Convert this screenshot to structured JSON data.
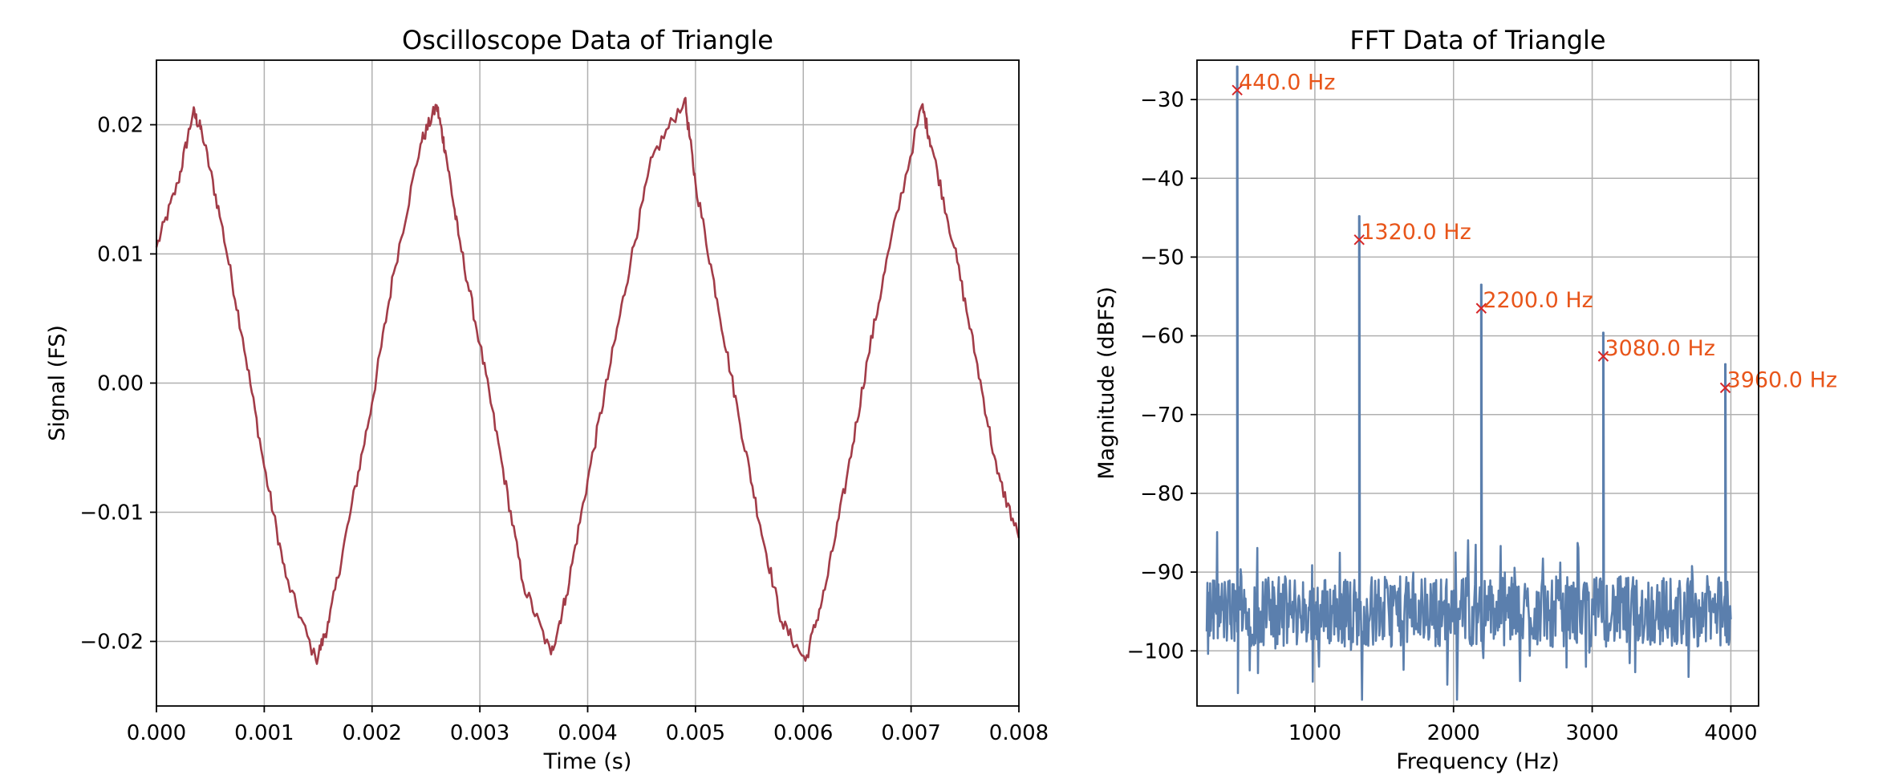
{
  "chart_data": [
    {
      "type": "line",
      "title": "Oscilloscope Data of Triangle",
      "xlabel": "Time (s)",
      "ylabel": "Signal (FS)",
      "xlim": [
        0,
        0.008
      ],
      "ylim": [
        -0.025,
        0.025
      ],
      "grid": true,
      "xticks": [
        0,
        0.001,
        0.002,
        0.003,
        0.004,
        0.005,
        0.006,
        0.007,
        0.008
      ],
      "xtick_labels": [
        "0.000",
        "0.001",
        "0.002",
        "0.003",
        "0.004",
        "0.005",
        "0.006",
        "0.007",
        "0.008"
      ],
      "yticks": [
        -0.02,
        -0.01,
        0,
        0.01,
        0.02
      ],
      "ytick_labels": [
        "−0.02",
        "−0.01",
        "0.00",
        "0.01",
        "0.02"
      ],
      "color": "#a23c48",
      "series": [
        {
          "x": [
            0,
            0.0002,
            0.00034,
            0.00042,
            0.0006,
            0.0008,
            0.001,
            0.0012,
            0.00148,
            0.0016,
            0.0018,
            0.002,
            0.0022,
            0.00245,
            0.0026,
            0.00268,
            0.0028,
            0.003,
            0.0032,
            0.0034,
            0.00366,
            0.0038,
            0.004,
            0.0042,
            0.0044,
            0.0046,
            0.0049,
            0.005,
            0.0052,
            0.0054,
            0.0056,
            0.0058,
            0.00602,
            0.0062,
            0.0064,
            0.0066,
            0.0068,
            0.0071,
            0.0072,
            0.0074,
            0.0076,
            0.0078,
            0.008
          ],
          "y": [
            0.0105,
            0.0155,
            0.021,
            0.0195,
            0.0125,
            0.0035,
            -0.0065,
            -0.015,
            -0.0215,
            -0.0185,
            -0.01,
            -0.0015,
            0.0085,
            0.0185,
            0.0215,
            0.018,
            0.0115,
            0.003,
            -0.006,
            -0.0155,
            -0.021,
            -0.0165,
            -0.0075,
            0.001,
            0.0095,
            0.0175,
            0.022,
            0.0155,
            0.0065,
            -0.0025,
            -0.011,
            -0.0185,
            -0.0215,
            -0.016,
            -0.0075,
            0.002,
            0.0105,
            0.0215,
            0.018,
            0.0105,
            0.002,
            -0.007,
            -0.012
          ]
        }
      ]
    },
    {
      "type": "line",
      "title": "FFT Data of Triangle",
      "xlabel": "Frequency (Hz)",
      "ylabel": "Magnitude (dBFS)",
      "xlim": [
        150,
        4200
      ],
      "ylim": [
        -107,
        -25
      ],
      "grid": true,
      "xticks": [
        1000,
        2000,
        3000,
        4000
      ],
      "xtick_labels": [
        "1000",
        "2000",
        "3000",
        "4000"
      ],
      "yticks": [
        -100,
        -90,
        -80,
        -70,
        -60,
        -50,
        -40,
        -30
      ],
      "ytick_labels": [
        "−100",
        "−90",
        "−80",
        "−70",
        "−60",
        "−50",
        "−40",
        "−30"
      ],
      "color": "#5b7fad",
      "noise_floor": -95,
      "freq_range": [
        220,
        4000
      ],
      "peaks": [
        {
          "x": 440,
          "y": -28.8,
          "label": "440.0 Hz"
        },
        {
          "x": 1320,
          "y": -47.8,
          "label": "1320.0 Hz"
        },
        {
          "x": 2200,
          "y": -56.5,
          "label": "2200.0 Hz"
        },
        {
          "x": 3080,
          "y": -62.6,
          "label": "3080.0 Hz"
        },
        {
          "x": 3960,
          "y": -66.6,
          "label": "3960.0 Hz"
        }
      ],
      "marker_color": "#d62728",
      "annotation_color": "#e8551a"
    }
  ]
}
